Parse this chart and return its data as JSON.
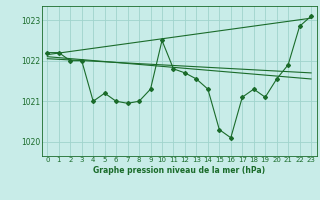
{
  "title": "Graphe pression niveau de la mer (hPa)",
  "bg_color": "#c8ece8",
  "line_color": "#1a6b2a",
  "grid_color": "#a0d4cc",
  "xlim": [
    -0.5,
    23.5
  ],
  "ylim": [
    1019.65,
    1023.35
  ],
  "yticks": [
    1020,
    1021,
    1022,
    1023
  ],
  "ytick_labels": [
    "1020",
    "1021",
    "1022",
    "1023"
  ],
  "xticks": [
    0,
    1,
    2,
    3,
    4,
    5,
    6,
    7,
    8,
    9,
    10,
    11,
    12,
    13,
    14,
    15,
    16,
    17,
    18,
    19,
    20,
    21,
    22,
    23
  ],
  "main_x": [
    0,
    1,
    2,
    3,
    4,
    5,
    6,
    7,
    8,
    9,
    10,
    11,
    12,
    13,
    14,
    15,
    16,
    17,
    18,
    19,
    20,
    21,
    22,
    23
  ],
  "main_y": [
    1022.2,
    1022.2,
    1022.0,
    1022.0,
    1021.0,
    1021.2,
    1021.0,
    1020.95,
    1021.0,
    1021.3,
    1022.5,
    1021.8,
    1021.7,
    1021.55,
    1021.3,
    1020.3,
    1020.1,
    1021.1,
    1021.3,
    1021.1,
    1021.55,
    1021.9,
    1022.85,
    1023.1
  ],
  "trend1_x": [
    0,
    23
  ],
  "trend1_y": [
    1022.15,
    1023.05
  ],
  "trend2_x": [
    0,
    23
  ],
  "trend2_y": [
    1022.1,
    1021.55
  ],
  "trend3_x": [
    0,
    23
  ],
  "trend3_y": [
    1022.05,
    1021.7
  ]
}
